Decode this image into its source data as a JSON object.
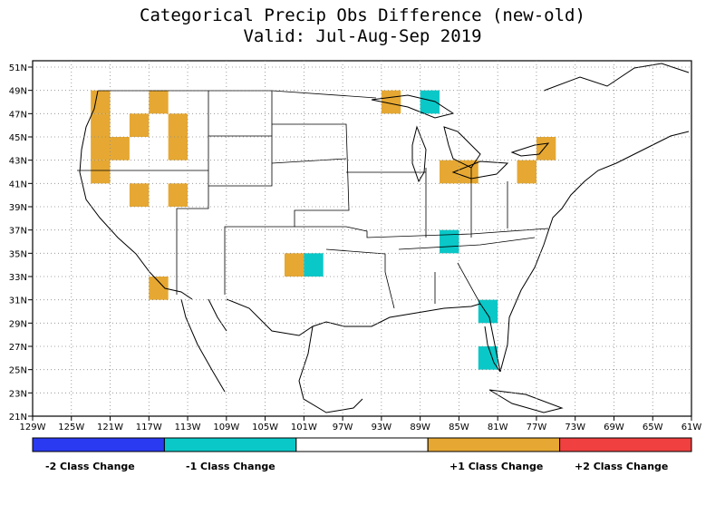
{
  "title": "Categorical Precip Obs Difference (new-old)",
  "subtitle": "Valid: Jul-Aug-Sep 2019",
  "map": {
    "lon_range": [
      -129,
      -61
    ],
    "lat_range": [
      21,
      52
    ],
    "x_ticks": [
      "129W",
      "125W",
      "121W",
      "117W",
      "113W",
      "109W",
      "105W",
      "101W",
      "97W",
      "93W",
      "89W",
      "85W",
      "81W",
      "77W",
      "73W",
      "69W",
      "65W",
      "61W"
    ],
    "y_ticks": [
      "21N",
      "23N",
      "25N",
      "27N",
      "29N",
      "31N",
      "33N",
      "35N",
      "37N",
      "39N",
      "41N",
      "43N",
      "45N",
      "47N",
      "49N",
      "51N"
    ],
    "grid": true
  },
  "legend": {
    "colors": [
      "#2a3af0",
      "#0ac8c8",
      "#ffffff",
      "#e6a832",
      "#f04040"
    ],
    "labels": [
      "-2 Class Change",
      "-1 Class Change",
      "",
      "+1 Class Change",
      "+2 Class Change"
    ]
  },
  "cells": [
    {
      "lon": -122,
      "lat": 48,
      "cls": "+1"
    },
    {
      "lon": -122,
      "lat": 46,
      "cls": "+1"
    },
    {
      "lon": -122,
      "lat": 44,
      "cls": "+1"
    },
    {
      "lon": -122,
      "lat": 42,
      "cls": "+1"
    },
    {
      "lon": -120,
      "lat": 44,
      "cls": "+1"
    },
    {
      "lon": -118,
      "lat": 46,
      "cls": "+1"
    },
    {
      "lon": -118,
      "lat": 40,
      "cls": "+1"
    },
    {
      "lon": -116,
      "lat": 48,
      "cls": "+1"
    },
    {
      "lon": -114,
      "lat": 46,
      "cls": "+1"
    },
    {
      "lon": -114,
      "lat": 44,
      "cls": "+1"
    },
    {
      "lon": -114,
      "lat": 40,
      "cls": "+1"
    },
    {
      "lon": -116,
      "lat": 32,
      "cls": "+1"
    },
    {
      "lon": -102,
      "lat": 34,
      "cls": "+1"
    },
    {
      "lon": -100,
      "lat": 34,
      "cls": "-1"
    },
    {
      "lon": -92,
      "lat": 48,
      "cls": "+1"
    },
    {
      "lon": -88,
      "lat": 48,
      "cls": "-1"
    },
    {
      "lon": -86,
      "lat": 42,
      "cls": "+1"
    },
    {
      "lon": -84,
      "lat": 42,
      "cls": "+1"
    },
    {
      "lon": -86,
      "lat": 36,
      "cls": "-1"
    },
    {
      "lon": -82,
      "lat": 30,
      "cls": "-1"
    },
    {
      "lon": -82,
      "lat": 26,
      "cls": "-1"
    },
    {
      "lon": -78,
      "lat": 42,
      "cls": "+1"
    },
    {
      "lon": -76,
      "lat": 44,
      "cls": "+1"
    }
  ]
}
